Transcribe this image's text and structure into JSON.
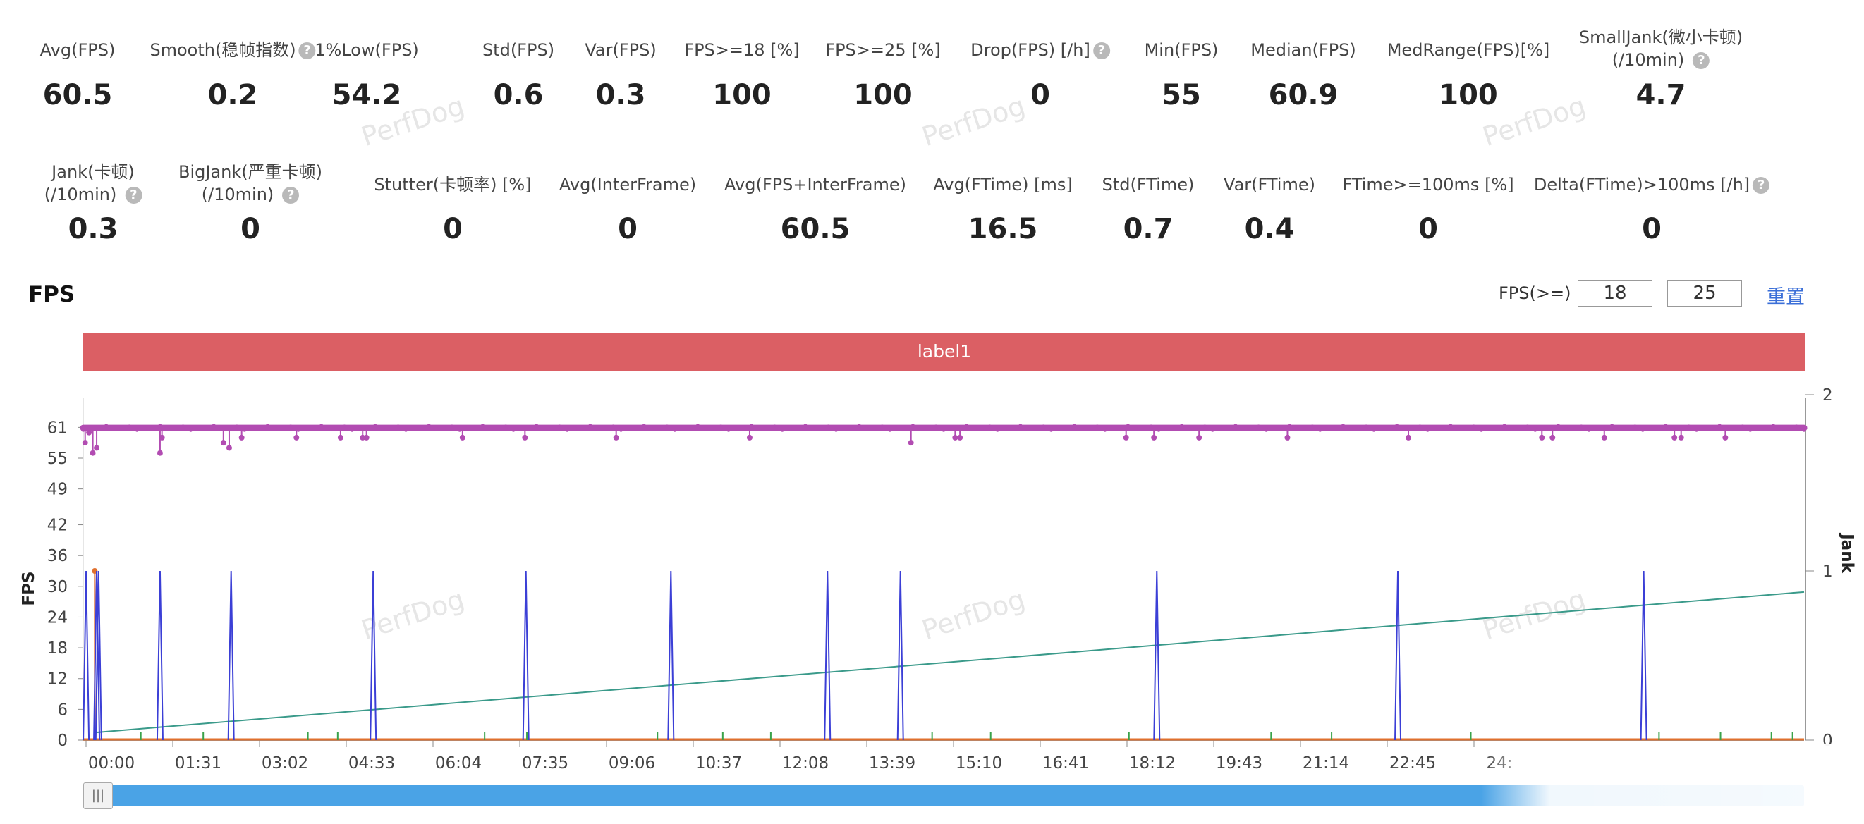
{
  "stats_row1": [
    {
      "label": "Avg(FPS)",
      "value": "60.5",
      "help": false
    },
    {
      "label": "Smooth(稳帧指数)",
      "value": "0.2",
      "help": true
    },
    {
      "label": "1%Low(FPS)",
      "value": "54.2",
      "help": false
    },
    {
      "label": "Std(FPS)",
      "value": "0.6",
      "help": false
    },
    {
      "label": "Var(FPS)",
      "value": "0.3",
      "help": false
    },
    {
      "label": "FPS>=18 [%]",
      "value": "100",
      "help": false
    },
    {
      "label": "FPS>=25 [%]",
      "value": "100",
      "help": false
    },
    {
      "label": "Drop(FPS) [/h]",
      "value": "0",
      "help": true
    },
    {
      "label": "Min(FPS)",
      "value": "55",
      "help": false
    },
    {
      "label": "Median(FPS)",
      "value": "60.9",
      "help": false
    },
    {
      "label": "MedRange(FPS)[%]",
      "value": "100",
      "help": false
    },
    {
      "label": "SmallJank(微小卡顿)",
      "label2": "(/10min)",
      "value": "4.7",
      "help": true
    }
  ],
  "stats_row2": [
    {
      "label": "Jank(卡顿)",
      "label2": "(/10min)",
      "value": "0.3",
      "help": true
    },
    {
      "label": "BigJank(严重卡顿)",
      "label2": "(/10min)",
      "value": "0",
      "help": true
    },
    {
      "label": "Stutter(卡顿率) [%]",
      "value": "0",
      "help": false
    },
    {
      "label": "Avg(InterFrame)",
      "value": "0",
      "help": false
    },
    {
      "label": "Avg(FPS+InterFrame)",
      "value": "60.5",
      "help": false
    },
    {
      "label": "Avg(FTime) [ms]",
      "value": "16.5",
      "help": false
    },
    {
      "label": "Std(FTime)",
      "value": "0.7",
      "help": false
    },
    {
      "label": "Var(FTime)",
      "value": "0.4",
      "help": false
    },
    {
      "label": "FTime>=100ms [%]",
      "value": "0",
      "help": false
    },
    {
      "label": "Delta(FTime)>100ms [/h]",
      "value": "0",
      "help": true
    }
  ],
  "fps_section": {
    "title": "FPS",
    "threshold_label": "FPS(>=)",
    "threshold_low": "18",
    "threshold_high": "25",
    "reset_label": "重置",
    "label_bar": "label1"
  },
  "watermark": "PerfDog",
  "chart_data": {
    "type": "line",
    "ylabel": "FPS",
    "y2label": "Jank",
    "yticks": [
      0,
      6,
      12,
      18,
      24,
      30,
      36,
      42,
      49,
      55,
      61
    ],
    "y2ticks": [
      0,
      1,
      2
    ],
    "ylim": [
      0,
      66
    ],
    "y2lim": [
      0,
      2
    ],
    "xticks": [
      "00:00",
      "01:31",
      "03:02",
      "04:33",
      "06:04",
      "07:35",
      "09:06",
      "10:37",
      "12:08",
      "13:39",
      "15:10",
      "16:41",
      "18:12",
      "19:43",
      "21:14",
      "22:45",
      "24:"
    ],
    "xlim_seconds": [
      0,
      1792
    ],
    "colors": {
      "fps": "#b24cb2",
      "jank": "#3b3fd6",
      "smalljank": "#3aa24a",
      "stutter": "#e0702e",
      "trend": "#3a9a8a"
    },
    "series": [
      {
        "name": "FPS",
        "values_summary": {
          "typical": 60.9,
          "min": 55
        },
        "dips": [
          [
            2,
            58
          ],
          [
            6,
            60
          ],
          [
            10,
            56
          ],
          [
            14,
            57
          ],
          [
            80,
            56
          ],
          [
            82,
            59
          ],
          [
            146,
            58
          ],
          [
            152,
            57
          ],
          [
            165,
            59
          ],
          [
            222,
            59
          ],
          [
            268,
            59
          ],
          [
            291,
            59
          ],
          [
            295,
            59
          ],
          [
            395,
            59
          ],
          [
            460,
            59
          ],
          [
            555,
            59
          ],
          [
            694,
            59
          ],
          [
            862,
            58
          ],
          [
            908,
            59
          ],
          [
            913,
            59
          ],
          [
            1086,
            59
          ],
          [
            1115,
            59
          ],
          [
            1162,
            59
          ],
          [
            1254,
            59
          ],
          [
            1380,
            59
          ],
          [
            1519,
            59
          ],
          [
            1530,
            59
          ],
          [
            1584,
            59
          ],
          [
            1657,
            59
          ],
          [
            1664,
            59
          ],
          [
            1710,
            59
          ]
        ]
      },
      {
        "name": "Jank",
        "spikes_seconds": [
          3,
          14,
          16,
          80,
          154,
          302,
          461,
          612,
          775,
          851,
          1118,
          1369,
          1625
        ],
        "spike_value": 1
      },
      {
        "name": "SmallJank",
        "spikes_seconds": [
          60,
          125,
          234,
          265,
          418,
          462,
          598,
          666,
          716,
          884,
          945,
          1089,
          1237,
          1300,
          1445,
          1641,
          1705,
          1758,
          1780
        ],
        "spike_value": 0.08
      },
      {
        "name": "Stutter",
        "spikes_seconds": [
          12
        ],
        "spike_value": 33
      },
      {
        "name": "Trend",
        "start": [
          0,
          1.5
        ],
        "end": [
          1792,
          28.9
        ]
      }
    ]
  }
}
